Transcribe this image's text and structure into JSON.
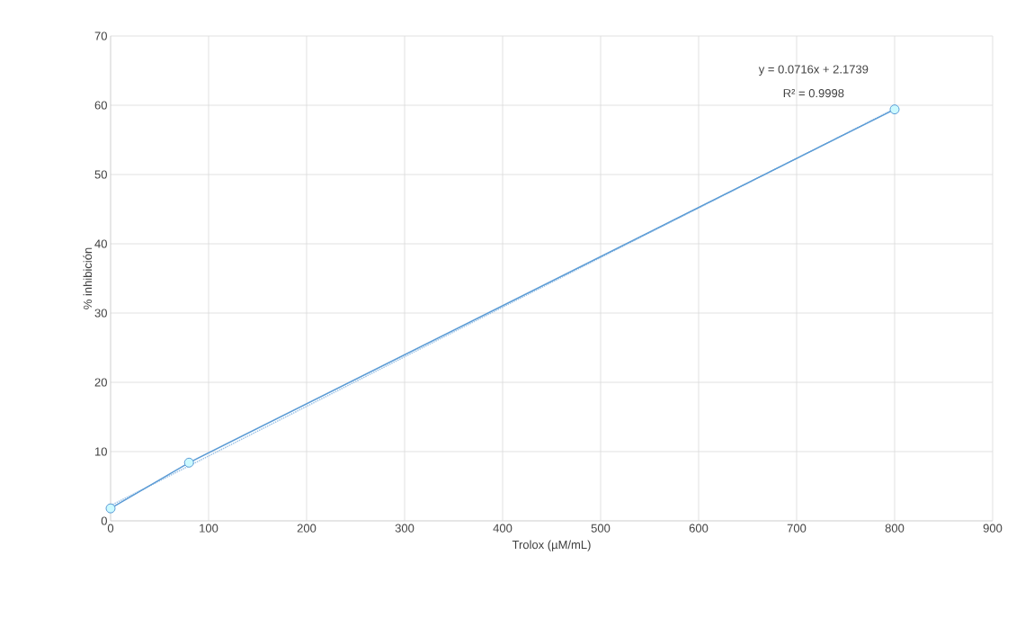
{
  "chart_data": {
    "type": "line",
    "xlabel": "Trolox (µM/mL)",
    "ylabel": "% inhibición",
    "annotations": [
      "y = 0.0716x + 2.1739",
      "R² = 0.9998"
    ],
    "xlim": [
      0,
      900
    ],
    "xticks": [
      0,
      100,
      200,
      300,
      400,
      500,
      600,
      700,
      800,
      900
    ],
    "ylim": [
      0,
      70
    ],
    "yticks": [
      0,
      10,
      20,
      30,
      40,
      50,
      60,
      70
    ],
    "grid": true,
    "series": [
      {
        "color": "#5b9bd5",
        "x": [
          0,
          80,
          800
        ],
        "values": [
          1.8,
          8.4,
          59.4
        ],
        "marker": "circle",
        "line_style": "solid"
      },
      {
        "color": "#9dc3e6",
        "x": [
          0,
          800
        ],
        "values": [
          2.2,
          59.5
        ],
        "marker": "none",
        "line_style": "dotted"
      }
    ]
  }
}
